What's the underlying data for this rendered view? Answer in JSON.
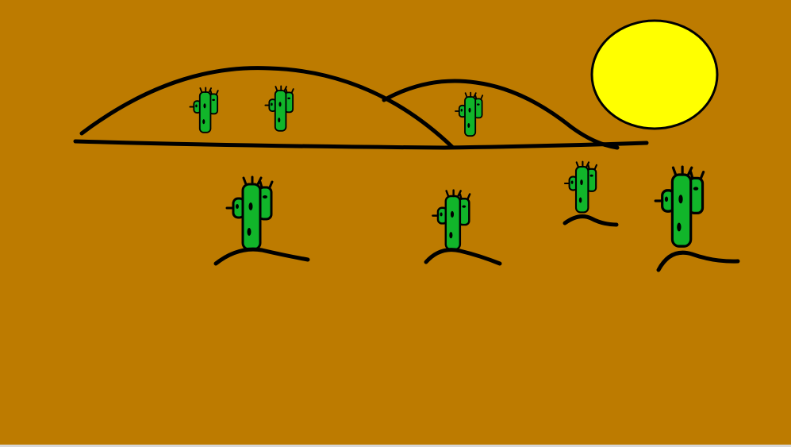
{
  "scene": {
    "title": "",
    "colors": {
      "sand": "#bd7b00",
      "sun": "#ffff00",
      "cactus": "#11b52a",
      "outline": "#000000"
    },
    "objects": {
      "sun": "sun-icon",
      "hills": "hill-outline",
      "cactus": "cactus-icon",
      "dune": "dune-line"
    }
  }
}
